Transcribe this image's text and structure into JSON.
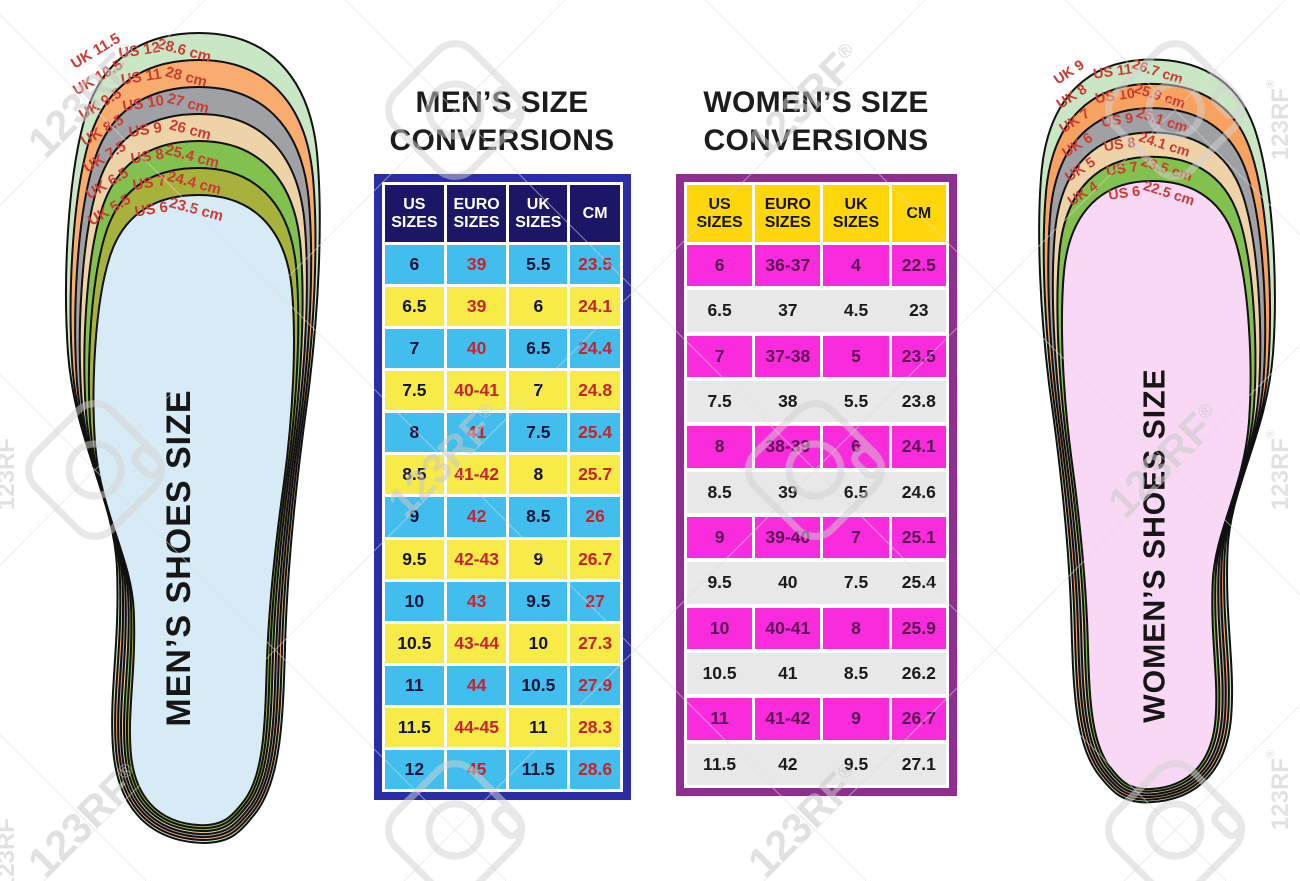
{
  "watermark": {
    "text": "123RF",
    "registered": "®"
  },
  "mens": {
    "heading_line1": "MEN’S SIZE",
    "heading_line2": "CONVERSIONS",
    "table_style": {
      "border_color": "#2A2EA2",
      "header_bg": "#1B1766",
      "header_text_color": "#FFFFFF",
      "row_colors": [
        "#41BEEE",
        "#F6EB47"
      ],
      "row_text_color": "#14143C",
      "accent_text_color": "#C8232C",
      "accent_columns": [
        1,
        3
      ]
    },
    "insole": {
      "title": "MEN’S SHOES SIZE",
      "inner_color": "#D7EBF6",
      "label_color": "#CE3A31",
      "outline_color": "#111111",
      "bands": [
        {
          "color": "#C9E7C4",
          "uk": "UK 11.5",
          "us": "US 12",
          "cm": "28.6 cm"
        },
        {
          "color": "#F8AC6E",
          "uk": "UK 10.5",
          "us": "US 11",
          "cm": "28 cm"
        },
        {
          "color": "#9FA1A5",
          "uk": "UK 9.5",
          "us": "US 10",
          "cm": "27 cm"
        },
        {
          "color": "#EFD3A8",
          "uk": "UK 8.5",
          "us": "US 9",
          "cm": "26 cm"
        },
        {
          "color": "#82C14D",
          "uk": "UK 7.5",
          "us": "US 8",
          "cm": "25.4 cm"
        },
        {
          "color": "#A7B23D",
          "uk": "UK 6.5",
          "us": "US 7",
          "cm": "24.4 cm"
        },
        {
          "uk": "UK 5.5",
          "us": "US 6",
          "cm": "23.5 cm"
        }
      ]
    }
  },
  "womens": {
    "heading_line1": "WOMEN’S SIZE",
    "heading_line2": "CONVERSIONS",
    "table_style": {
      "border_color": "#8F2E90",
      "header_bg": "#FFD60A",
      "header_text_color": "#141414",
      "row_colors": [
        "#F92BDC",
        "#E8E8E8"
      ],
      "row_text_colors": [
        "#5A1254",
        "#1B1B1B"
      ],
      "accent_text_color": "#5A1254",
      "accent_columns": []
    },
    "insole": {
      "title": "WOMEN’S SHOES SIZE",
      "inner_color": "#F8D8F4",
      "label_color": "#CE3A31",
      "outline_color": "#111111",
      "bands": [
        {
          "color": "#C9E7C4",
          "uk": "UK 9",
          "us": "US 11",
          "cm": "26.7 cm"
        },
        {
          "color": "#F7A261",
          "uk": "UK 8",
          "us": "US 10",
          "cm": "25.9 cm"
        },
        {
          "color": "#9FA1A5",
          "uk": "UK 7",
          "us": "US 9",
          "cm": "25.1 cm"
        },
        {
          "color": "#EFD3A8",
          "uk": "UK 6",
          "us": "US 8",
          "cm": "24.1 cm"
        },
        {
          "color": "#82C14D",
          "uk": "UK 5",
          "us": "US 7",
          "cm": "23.5 cm"
        },
        {
          "uk": "UK 4",
          "us": "US 6",
          "cm": "22.5 cm"
        }
      ]
    }
  },
  "chart_data": [
    {
      "type": "table",
      "title": "MEN’S SIZE CONVERSIONS",
      "columns": [
        "US SIZES",
        "EURO SIZES",
        "UK SIZES",
        "CM"
      ],
      "rows": [
        [
          "6",
          "39",
          "5.5",
          "23.5"
        ],
        [
          "6.5",
          "39",
          "6",
          "24.1"
        ],
        [
          "7",
          "40",
          "6.5",
          "24.4"
        ],
        [
          "7.5",
          "40-41",
          "7",
          "24.8"
        ],
        [
          "8",
          "41",
          "7.5",
          "25.4"
        ],
        [
          "8.5",
          "41-42",
          "8",
          "25.7"
        ],
        [
          "9",
          "42",
          "8.5",
          "26"
        ],
        [
          "9.5",
          "42-43",
          "9",
          "26.7"
        ],
        [
          "10",
          "43",
          "9.5",
          "27"
        ],
        [
          "10.5",
          "43-44",
          "10",
          "27.3"
        ],
        [
          "11",
          "44",
          "10.5",
          "27.9"
        ],
        [
          "11.5",
          "44-45",
          "11",
          "28.3"
        ],
        [
          "12",
          "45",
          "11.5",
          "28.6"
        ]
      ]
    },
    {
      "type": "table",
      "title": "WOMEN’S SIZE CONVERSIONS",
      "columns": [
        "US SIZES",
        "EURO SIZES",
        "UK SIZES",
        "CM"
      ],
      "rows": [
        [
          "6",
          "36-37",
          "4",
          "22.5"
        ],
        [
          "6.5",
          "37",
          "4.5",
          "23"
        ],
        [
          "7",
          "37-38",
          "5",
          "23.5"
        ],
        [
          "7.5",
          "38",
          "5.5",
          "23.8"
        ],
        [
          "8",
          "38-39",
          "6",
          "24.1"
        ],
        [
          "8.5",
          "39",
          "6.5",
          "24.6"
        ],
        [
          "9",
          "39-40",
          "7",
          "25.1"
        ],
        [
          "9.5",
          "40",
          "7.5",
          "25.4"
        ],
        [
          "10",
          "40-41",
          "8",
          "25.9"
        ],
        [
          "10.5",
          "41",
          "8.5",
          "26.2"
        ],
        [
          "11",
          "41-42",
          "9",
          "26.7"
        ],
        [
          "11.5",
          "42",
          "9.5",
          "27.1"
        ]
      ]
    }
  ]
}
